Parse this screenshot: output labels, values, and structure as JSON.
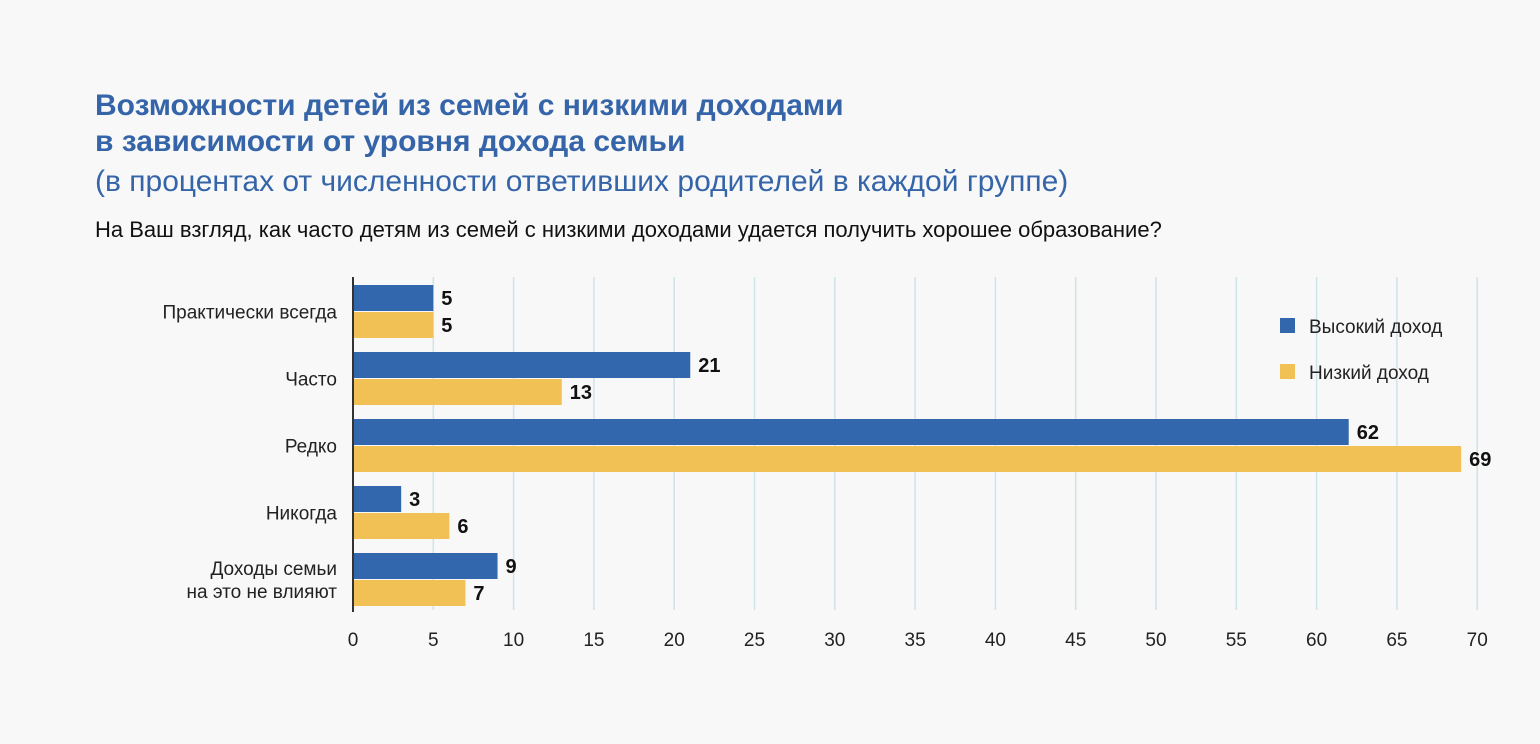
{
  "title_lines": [
    "Возможности детей из семей с низкими доходами",
    "в зависимости от уровня дохода семьи"
  ],
  "subtitle": "(в процентах от численности ответивших родителей в каждой группе)",
  "question": "На Ваш взгляд, как часто детям из семей с низкими доходами удается получить хорошее образование?",
  "colors": {
    "high": "#3367ad",
    "low": "#f2c155",
    "grid": "#cfe3ea",
    "axis": "#333333"
  },
  "chart_data": {
    "type": "bar",
    "orientation": "horizontal",
    "categories": [
      [
        "Практически всегда"
      ],
      [
        "Часто"
      ],
      [
        "Редко"
      ],
      [
        "Никогда"
      ],
      [
        "Доходы семьи",
        "на это не влияют"
      ]
    ],
    "series": [
      {
        "name": "Высокий доход",
        "values": [
          5,
          21,
          62,
          3,
          9
        ]
      },
      {
        "name": "Низкий доход",
        "values": [
          5,
          13,
          69,
          6,
          7
        ]
      }
    ],
    "xlim": [
      0,
      70
    ],
    "xticks": [
      0,
      5,
      10,
      15,
      20,
      25,
      30,
      35,
      40,
      45,
      50,
      55,
      60,
      65,
      70
    ],
    "grid": true,
    "legend": "top-right"
  }
}
